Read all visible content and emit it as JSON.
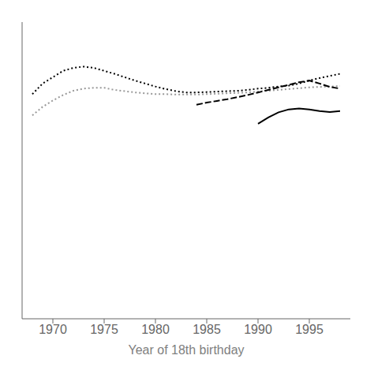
{
  "chart_data": {
    "type": "line",
    "xlabel": "Year of 18th birthday",
    "xlim": [
      1967,
      1999
    ],
    "xticks": [
      1970,
      1975,
      1980,
      1985,
      1990,
      1995
    ],
    "ylim": [
      14.5,
      21.5
    ],
    "grid": false,
    "tick_labels": "x",
    "series": [
      {
        "color": "#999999",
        "line_style": "dotted",
        "x": [
          1968,
          1969,
          1970,
          1971,
          1972,
          1973,
          1974,
          1975,
          1976,
          1977,
          1978,
          1979,
          1980,
          1981,
          1982,
          1983,
          1984,
          1985,
          1986,
          1987,
          1988,
          1989,
          1990,
          1991,
          1992,
          1993,
          1994,
          1995,
          1996,
          1997,
          1998
        ],
        "values": [
          19.3,
          19.5,
          19.65,
          19.78,
          19.88,
          19.93,
          19.95,
          19.95,
          19.9,
          19.87,
          19.84,
          19.82,
          19.8,
          19.8,
          19.79,
          19.79,
          19.79,
          19.8,
          19.81,
          19.82,
          19.83,
          19.84,
          19.86,
          19.88,
          19.9,
          19.92,
          19.94,
          19.96,
          19.97,
          19.98,
          19.99
        ]
      },
      {
        "color": "#000000",
        "line_style": "dotted",
        "x": [
          1968,
          1969,
          1970,
          1971,
          1972,
          1973,
          1974,
          1975,
          1976,
          1977,
          1978,
          1979,
          1980,
          1981,
          1982,
          1983,
          1984,
          1985,
          1986,
          1987,
          1988,
          1989,
          1990,
          1991,
          1992,
          1993,
          1994,
          1995,
          1996,
          1997,
          1998
        ],
        "values": [
          19.8,
          20.05,
          20.2,
          20.35,
          20.42,
          20.45,
          20.42,
          20.35,
          20.28,
          20.2,
          20.12,
          20.05,
          19.98,
          19.92,
          19.87,
          19.84,
          19.84,
          19.85,
          19.86,
          19.87,
          19.88,
          19.9,
          19.93,
          19.95,
          19.98,
          20.0,
          20.05,
          20.12,
          20.18,
          20.23,
          20.28
        ]
      },
      {
        "color": "#000000",
        "line_style": "dashed",
        "x": [
          1984,
          1985,
          1986,
          1987,
          1988,
          1989,
          1990,
          1991,
          1992,
          1993,
          1994,
          1995,
          1996,
          1997,
          1998
        ],
        "values": [
          19.55,
          19.6,
          19.64,
          19.68,
          19.73,
          19.78,
          19.84,
          19.9,
          19.96,
          20.02,
          20.08,
          20.12,
          20.05,
          19.97,
          19.93
        ]
      },
      {
        "color": "#000000",
        "line_style": "solid",
        "x": [
          1990,
          1991,
          1992,
          1993,
          1994,
          1995,
          1996,
          1997,
          1998
        ],
        "values": [
          19.1,
          19.25,
          19.37,
          19.44,
          19.46,
          19.44,
          19.4,
          19.38,
          19.4
        ]
      }
    ]
  }
}
